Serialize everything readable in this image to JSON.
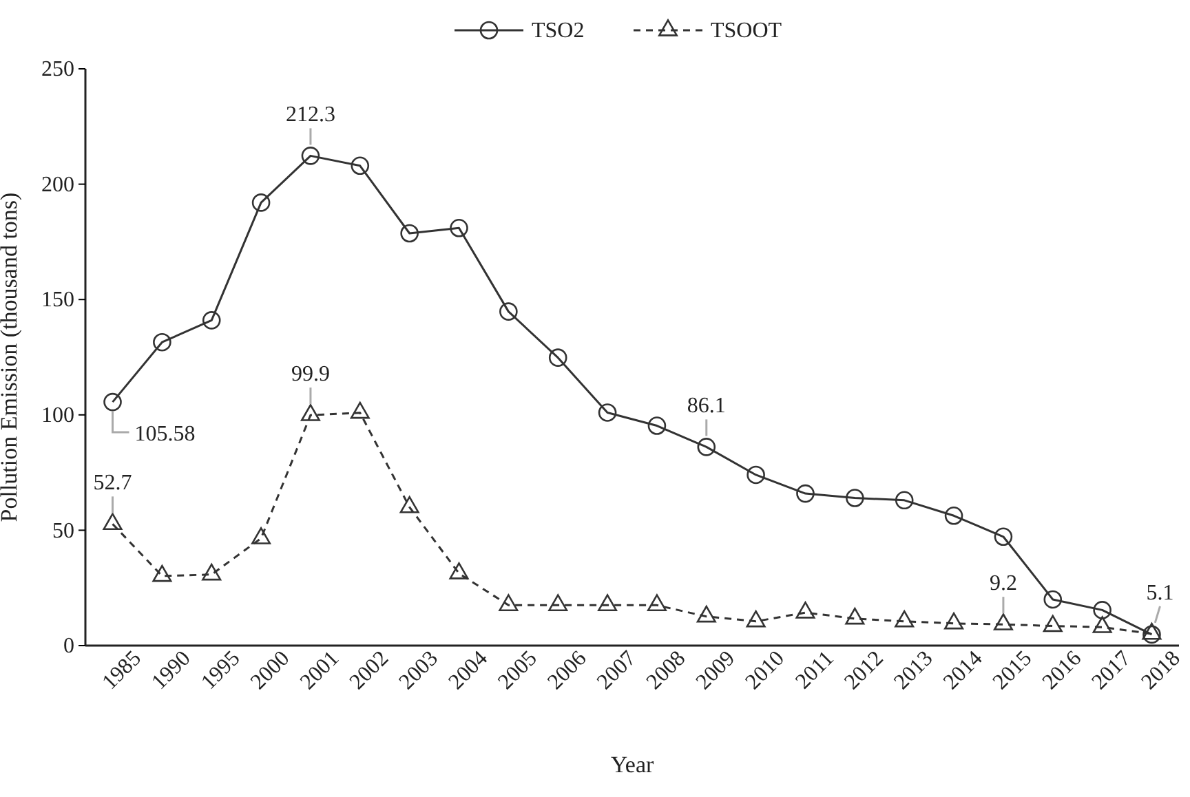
{
  "chart_data": {
    "type": "line",
    "xlabel": "Year",
    "ylabel": "Pollution Emission (thousand tons)",
    "categories": [
      "1985",
      "1990",
      "1995",
      "2000",
      "2001",
      "2002",
      "2003",
      "2004",
      "2005",
      "2006",
      "2007",
      "2008",
      "2009",
      "2010",
      "2011",
      "2012",
      "2013",
      "2014",
      "2015",
      "2016",
      "2017",
      "2018"
    ],
    "series": [
      {
        "name": "TSO2",
        "color": "#333333",
        "marker": "circle",
        "line_style": "solid",
        "values": [
          105.58,
          131.5,
          141,
          192,
          212.3,
          208,
          178.7,
          181,
          144.8,
          124.8,
          101,
          95.3,
          86.1,
          74,
          65.9,
          64,
          63,
          56.3,
          47.2,
          20,
          15.4,
          4.8
        ],
        "value_labels": [
          "105.58",
          null,
          null,
          null,
          "212.3",
          null,
          null,
          null,
          null,
          null,
          null,
          null,
          "86.1",
          null,
          null,
          null,
          null,
          null,
          null,
          null,
          null,
          null
        ]
      },
      {
        "name": "TSOOT",
        "color": "#333333",
        "marker": "triangle",
        "line_style": "dashed",
        "values": [
          52.7,
          30.2,
          30.8,
          46.5,
          99.9,
          100.9,
          60,
          31.3,
          17.5,
          17.5,
          17.5,
          17.5,
          12.6,
          10.5,
          14.3,
          11.7,
          10.5,
          9.6,
          9.2,
          8.5,
          8,
          5.1
        ],
        "value_labels": [
          "52.7",
          null,
          null,
          null,
          "99.9",
          null,
          null,
          null,
          null,
          null,
          null,
          null,
          null,
          null,
          null,
          null,
          null,
          null,
          "9.2",
          null,
          null,
          "5.1"
        ]
      }
    ],
    "ylim": [
      0,
      250
    ],
    "yticks": [
      0,
      50,
      100,
      150,
      200,
      250
    ],
    "legend": "top",
    "grid": false
  }
}
